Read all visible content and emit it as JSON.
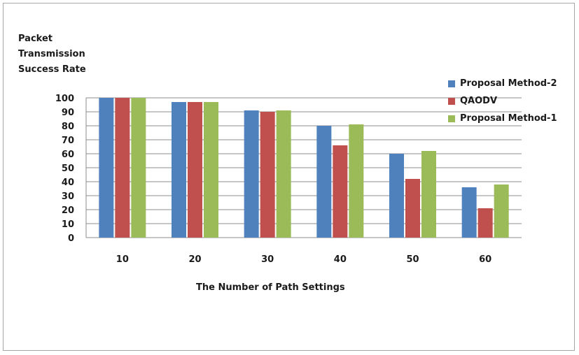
{
  "chart_data": {
    "type": "bar",
    "ylabel_lines": [
      "Packet",
      "Transmission",
      "Success Rate"
    ],
    "xlabel": "The Number of Path Settings",
    "categories": [
      "10",
      "20",
      "30",
      "40",
      "50",
      "60"
    ],
    "y_ticks": [
      "0",
      "10",
      "20",
      "30",
      "40",
      "50",
      "60",
      "70",
      "80",
      "90",
      "100"
    ],
    "ylim": [
      0,
      100
    ],
    "grid": true,
    "legend_position": "right",
    "series": [
      {
        "name": "Proposal Method-2",
        "color": "#4f81bd",
        "values": [
          100,
          97,
          91,
          80,
          60,
          36
        ]
      },
      {
        "name": "QAODV",
        "color": "#c0504d",
        "values": [
          100,
          97,
          90,
          66,
          42,
          21
        ]
      },
      {
        "name": "Proposal Method-1",
        "color": "#9bbb59",
        "values": [
          100,
          97,
          91,
          81,
          62,
          38
        ]
      }
    ]
  }
}
